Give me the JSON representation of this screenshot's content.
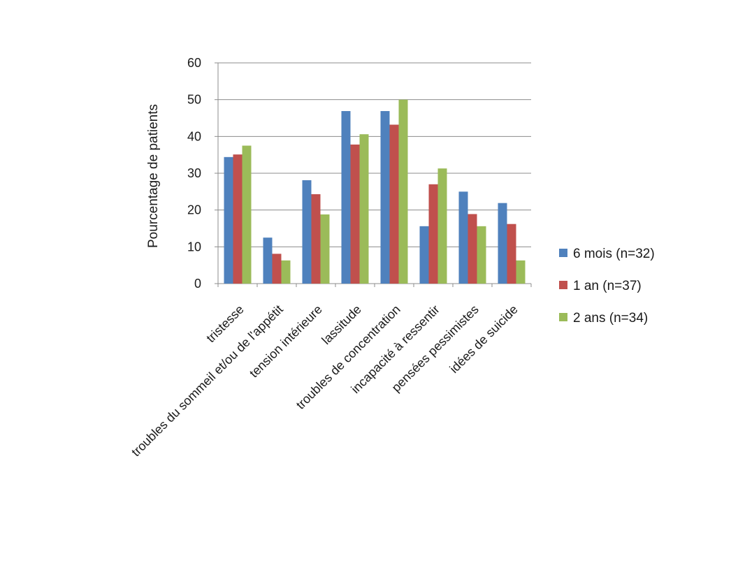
{
  "chart_data": {
    "type": "bar",
    "title": "",
    "xlabel": "",
    "ylabel": "Pourcentage de patients",
    "ylim": [
      0,
      60
    ],
    "yticks": [
      0,
      10,
      20,
      30,
      40,
      50,
      60
    ],
    "grid": true,
    "legend_position": "right",
    "categories": [
      "tristesse",
      "troubles du sommeil et/ou de l'appétit",
      "tension intérieure",
      "lassitude",
      "troubles de concentration",
      "incapacité à ressentir",
      "pensées pessimistes",
      "idées de suicide"
    ],
    "series": [
      {
        "name": "6 mois (n=32)",
        "color": "#4f81bd",
        "values": [
          34.4,
          12.5,
          28.1,
          46.9,
          46.9,
          15.6,
          25.0,
          21.9
        ]
      },
      {
        "name": "1 an (n=37)",
        "color": "#c0504d",
        "values": [
          35.1,
          8.1,
          24.3,
          37.8,
          43.2,
          27.0,
          18.9,
          16.2
        ]
      },
      {
        "name": "2 ans (n=34)",
        "color": "#9bbb59",
        "values": [
          37.5,
          6.3,
          18.8,
          40.6,
          50.0,
          31.3,
          15.6,
          6.3
        ]
      }
    ]
  }
}
